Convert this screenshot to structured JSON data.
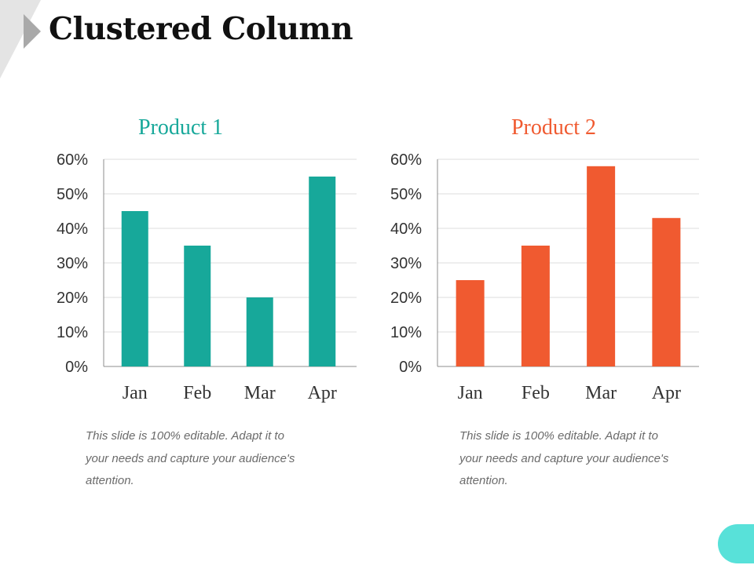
{
  "slide": {
    "title": "Clustered Column",
    "captions": [
      "This slide is 100% editable. Adapt it to your needs and capture your audience's attention.",
      "This slide is 100% editable. Adapt it to your needs and capture your audience's attention."
    ]
  },
  "colors": {
    "product1": "#17a89a",
    "product2": "#f05a30",
    "accent": "#58e1d9",
    "corner_dark": "#a9a9a9",
    "corner_light": "#e4e4e4"
  },
  "chart_data": [
    {
      "type": "bar",
      "title": "Product 1",
      "categories": [
        "Jan",
        "Feb",
        "Mar",
        "Apr"
      ],
      "series": [
        {
          "values": [
            45,
            35,
            20,
            55
          ]
        }
      ],
      "ylim": [
        0,
        60
      ],
      "yticks": [
        0,
        10,
        20,
        30,
        40,
        50,
        60
      ],
      "ytick_labels": [
        "0%",
        "10%",
        "20%",
        "30%",
        "40%",
        "50%",
        "60%"
      ],
      "grid": true,
      "legend": "none",
      "color": "#17a89a"
    },
    {
      "type": "bar",
      "title": "Product 2",
      "categories": [
        "Jan",
        "Feb",
        "Mar",
        "Apr"
      ],
      "series": [
        {
          "values": [
            25,
            35,
            58,
            43
          ]
        }
      ],
      "ylim": [
        0,
        60
      ],
      "yticks": [
        0,
        10,
        20,
        30,
        40,
        50,
        60
      ],
      "ytick_labels": [
        "0%",
        "10%",
        "20%",
        "30%",
        "40%",
        "50%",
        "60%"
      ],
      "grid": true,
      "legend": "none",
      "color": "#f05a30"
    }
  ]
}
